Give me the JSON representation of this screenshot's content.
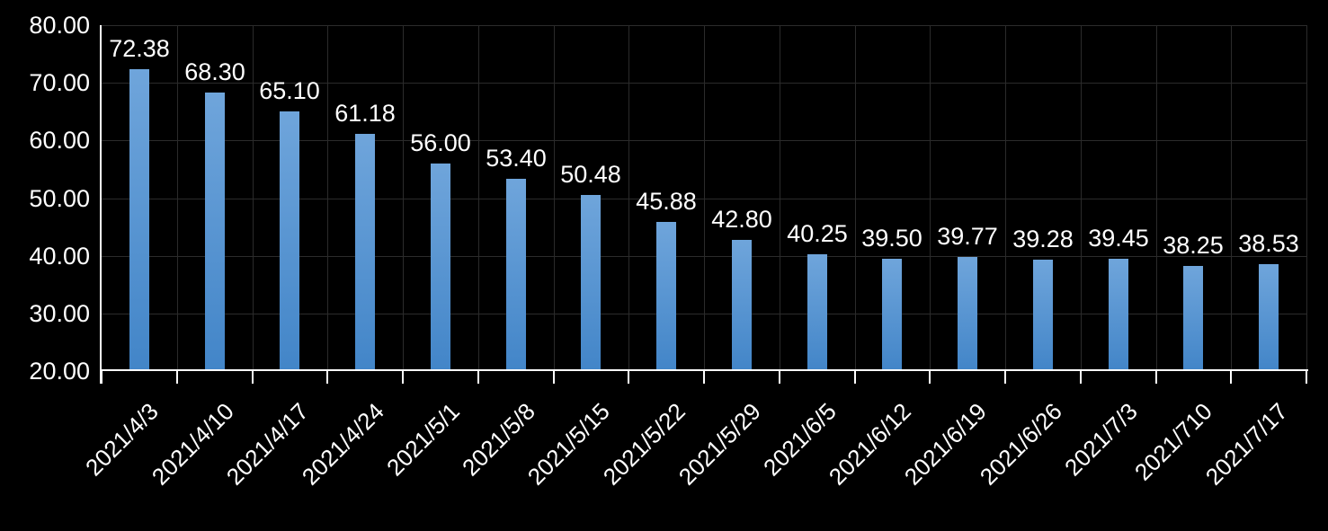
{
  "chart_data": {
    "type": "bar",
    "title": "",
    "xlabel": "",
    "ylabel": "",
    "categories": [
      "2021/4/3",
      "2021/4/10",
      "2021/4/17",
      "2021/4/24",
      "2021/5/1",
      "2021/5/8",
      "2021/5/15",
      "2021/5/22",
      "2021/5/29",
      "2021/6/5",
      "2021/6/12",
      "2021/6/19",
      "2021/6/26",
      "2021/7/3",
      "2021/710",
      "2021/7/17"
    ],
    "values": [
      72.38,
      68.3,
      65.1,
      61.18,
      56.0,
      53.4,
      50.48,
      45.88,
      42.8,
      40.25,
      39.5,
      39.77,
      39.28,
      39.45,
      38.25,
      38.53
    ],
    "data_labels": [
      "72.38",
      "68.30",
      "65.10",
      "61.18",
      "56.00",
      "53.40",
      "50.48",
      "45.88",
      "42.80",
      "40.25",
      "39.50",
      "39.77",
      "39.28",
      "39.45",
      "38.25",
      "38.53"
    ],
    "y_tick_labels": [
      "80.00",
      "70.00",
      "60.00",
      "50.00",
      "40.00",
      "30.00",
      "20.00"
    ],
    "ylim": [
      20,
      80
    ],
    "y_tick_step": 10,
    "grid": true,
    "legend": "none",
    "colors": {
      "background": "#000000",
      "bar_gradient_top": "#6FA5DB",
      "bar_gradient_bottom": "#4285C8",
      "gridline": "#2B2B2B",
      "axis_line": "#FFFFFF",
      "text": "#FFFFFF"
    }
  }
}
